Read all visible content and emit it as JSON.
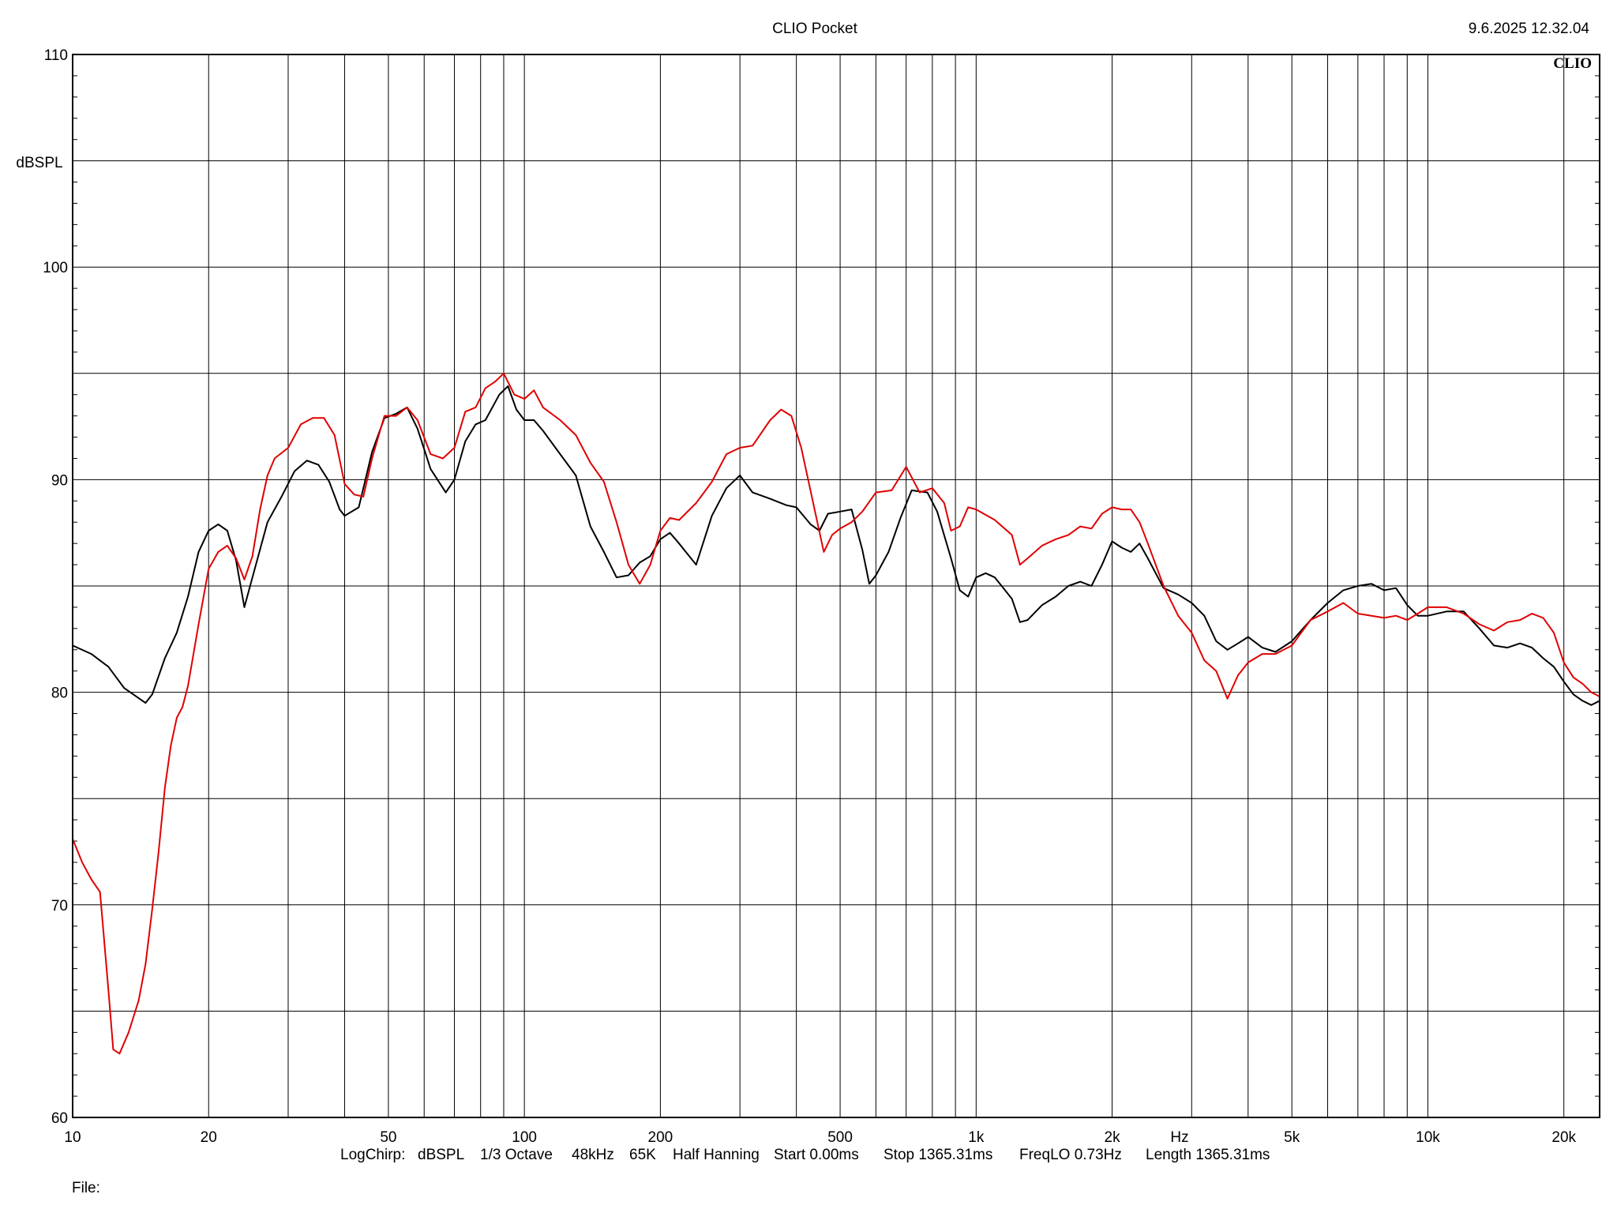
{
  "header": {
    "title": "CLIO Pocket",
    "timestamp": "9.6.2025 12.32.04",
    "brand": "CLIO"
  },
  "chart_data": {
    "type": "line",
    "title": "CLIO Pocket",
    "xlabel": "Hz",
    "ylabel": "dBSPL",
    "xscale": "log",
    "xlim": [
      10,
      24000
    ],
    "ylim": [
      60,
      110
    ],
    "grid": true,
    "x_tick_labels": [
      {
        "value": 10,
        "label": "10"
      },
      {
        "value": 20,
        "label": "20"
      },
      {
        "value": 50,
        "label": "50"
      },
      {
        "value": 100,
        "label": "100"
      },
      {
        "value": 200,
        "label": "200"
      },
      {
        "value": 500,
        "label": "500"
      },
      {
        "value": 1000,
        "label": "1k"
      },
      {
        "value": 2000,
        "label": "2k"
      },
      {
        "value": 5000,
        "label": "5k"
      },
      {
        "value": 10000,
        "label": "10k"
      },
      {
        "value": 20000,
        "label": "20k"
      }
    ],
    "y_tick_labels": [
      {
        "value": 110,
        "label": "110"
      },
      {
        "value": 100,
        "label": "100"
      },
      {
        "value": 90,
        "label": "90"
      },
      {
        "value": 80,
        "label": "80"
      },
      {
        "value": 70,
        "label": "70"
      },
      {
        "value": 60,
        "label": "60"
      }
    ],
    "series": [
      {
        "color": "#000000",
        "points": [
          [
            10,
            82.2
          ],
          [
            11,
            81.8
          ],
          [
            12,
            81.2
          ],
          [
            13,
            80.2
          ],
          [
            14.5,
            79.5
          ],
          [
            15,
            79.9
          ],
          [
            16,
            81.6
          ],
          [
            17,
            82.8
          ],
          [
            18,
            84.5
          ],
          [
            19,
            86.6
          ],
          [
            20,
            87.6
          ],
          [
            21,
            87.9
          ],
          [
            22,
            87.6
          ],
          [
            23,
            86.2
          ],
          [
            24,
            84.0
          ],
          [
            25,
            85.4
          ],
          [
            27,
            88.0
          ],
          [
            29,
            89.2
          ],
          [
            31,
            90.4
          ],
          [
            33,
            90.9
          ],
          [
            35,
            90.7
          ],
          [
            37,
            89.9
          ],
          [
            39,
            88.6
          ],
          [
            40,
            88.3
          ],
          [
            43,
            88.7
          ],
          [
            46,
            91.3
          ],
          [
            49,
            92.9
          ],
          [
            52,
            93.1
          ],
          [
            55,
            93.4
          ],
          [
            58,
            92.4
          ],
          [
            62,
            90.5
          ],
          [
            67,
            89.4
          ],
          [
            70,
            90.0
          ],
          [
            74,
            91.8
          ],
          [
            78,
            92.6
          ],
          [
            82,
            92.8
          ],
          [
            88,
            94.0
          ],
          [
            92,
            94.4
          ],
          [
            96,
            93.3
          ],
          [
            100,
            92.8
          ],
          [
            105,
            92.8
          ],
          [
            110,
            92.3
          ],
          [
            120,
            91.2
          ],
          [
            130,
            90.2
          ],
          [
            140,
            87.8
          ],
          [
            150,
            86.6
          ],
          [
            160,
            85.4
          ],
          [
            170,
            85.5
          ],
          [
            180,
            86.1
          ],
          [
            190,
            86.4
          ],
          [
            200,
            87.2
          ],
          [
            210,
            87.5
          ],
          [
            220,
            87.0
          ],
          [
            240,
            86.0
          ],
          [
            260,
            88.3
          ],
          [
            280,
            89.6
          ],
          [
            300,
            90.2
          ],
          [
            320,
            89.4
          ],
          [
            350,
            89.1
          ],
          [
            380,
            88.8
          ],
          [
            400,
            88.7
          ],
          [
            430,
            87.9
          ],
          [
            450,
            87.6
          ],
          [
            470,
            88.4
          ],
          [
            500,
            88.5
          ],
          [
            530,
            88.6
          ],
          [
            560,
            86.7
          ],
          [
            580,
            85.1
          ],
          [
            600,
            85.5
          ],
          [
            640,
            86.6
          ],
          [
            680,
            88.2
          ],
          [
            720,
            89.5
          ],
          [
            780,
            89.4
          ],
          [
            820,
            88.5
          ],
          [
            880,
            86.3
          ],
          [
            920,
            84.8
          ],
          [
            960,
            84.5
          ],
          [
            1000,
            85.4
          ],
          [
            1050,
            85.6
          ],
          [
            1100,
            85.4
          ],
          [
            1200,
            84.4
          ],
          [
            1250,
            83.3
          ],
          [
            1300,
            83.4
          ],
          [
            1400,
            84.1
          ],
          [
            1500,
            84.5
          ],
          [
            1600,
            85.0
          ],
          [
            1700,
            85.2
          ],
          [
            1800,
            85.0
          ],
          [
            1900,
            86.0
          ],
          [
            2000,
            87.1
          ],
          [
            2100,
            86.8
          ],
          [
            2200,
            86.6
          ],
          [
            2300,
            87.0
          ],
          [
            2400,
            86.3
          ],
          [
            2600,
            84.9
          ],
          [
            2800,
            84.6
          ],
          [
            3000,
            84.2
          ],
          [
            3200,
            83.6
          ],
          [
            3400,
            82.4
          ],
          [
            3600,
            82.0
          ],
          [
            3800,
            82.3
          ],
          [
            4000,
            82.6
          ],
          [
            4300,
            82.1
          ],
          [
            4600,
            81.9
          ],
          [
            5000,
            82.4
          ],
          [
            5500,
            83.4
          ],
          [
            6000,
            84.2
          ],
          [
            6500,
            84.8
          ],
          [
            7000,
            85.0
          ],
          [
            7500,
            85.1
          ],
          [
            8000,
            84.8
          ],
          [
            8500,
            84.9
          ],
          [
            9000,
            84.1
          ],
          [
            9500,
            83.6
          ],
          [
            10000,
            83.6
          ],
          [
            11000,
            83.8
          ],
          [
            12000,
            83.8
          ],
          [
            13000,
            83.0
          ],
          [
            14000,
            82.2
          ],
          [
            15000,
            82.1
          ],
          [
            16000,
            82.3
          ],
          [
            17000,
            82.1
          ],
          [
            18000,
            81.6
          ],
          [
            19000,
            81.2
          ],
          [
            20000,
            80.5
          ],
          [
            21000,
            79.9
          ],
          [
            22000,
            79.6
          ],
          [
            23000,
            79.4
          ],
          [
            24000,
            79.6
          ]
        ]
      },
      {
        "color": "#e00000",
        "points": [
          [
            10,
            73.1
          ],
          [
            10.5,
            72.0
          ],
          [
            11,
            71.2
          ],
          [
            11.5,
            70.6
          ],
          [
            12,
            66.0
          ],
          [
            12.3,
            63.2
          ],
          [
            12.7,
            63.0
          ],
          [
            13.3,
            64.0
          ],
          [
            14,
            65.5
          ],
          [
            14.5,
            67.2
          ],
          [
            15,
            69.8
          ],
          [
            15.5,
            72.5
          ],
          [
            16,
            75.5
          ],
          [
            16.5,
            77.5
          ],
          [
            17,
            78.8
          ],
          [
            17.5,
            79.3
          ],
          [
            18,
            80.3
          ],
          [
            19,
            83.2
          ],
          [
            20,
            85.8
          ],
          [
            21,
            86.6
          ],
          [
            22,
            86.9
          ],
          [
            23,
            86.3
          ],
          [
            24,
            85.3
          ],
          [
            25,
            86.4
          ],
          [
            26,
            88.6
          ],
          [
            27,
            90.2
          ],
          [
            28,
            91.0
          ],
          [
            30,
            91.5
          ],
          [
            32,
            92.6
          ],
          [
            34,
            92.9
          ],
          [
            36,
            92.9
          ],
          [
            38,
            92.1
          ],
          [
            40,
            89.8
          ],
          [
            42,
            89.3
          ],
          [
            44,
            89.2
          ],
          [
            46,
            91.0
          ],
          [
            49,
            93.0
          ],
          [
            52,
            93.0
          ],
          [
            55,
            93.4
          ],
          [
            58,
            92.8
          ],
          [
            62,
            91.2
          ],
          [
            66,
            91.0
          ],
          [
            70,
            91.5
          ],
          [
            74,
            93.2
          ],
          [
            78,
            93.4
          ],
          [
            82,
            94.3
          ],
          [
            86,
            94.6
          ],
          [
            90,
            95.0
          ],
          [
            95,
            94.0
          ],
          [
            100,
            93.8
          ],
          [
            105,
            94.2
          ],
          [
            110,
            93.4
          ],
          [
            120,
            92.8
          ],
          [
            130,
            92.1
          ],
          [
            140,
            90.8
          ],
          [
            150,
            89.9
          ],
          [
            160,
            88.0
          ],
          [
            170,
            86.0
          ],
          [
            180,
            85.1
          ],
          [
            190,
            86.0
          ],
          [
            200,
            87.6
          ],
          [
            210,
            88.2
          ],
          [
            220,
            88.1
          ],
          [
            240,
            88.9
          ],
          [
            260,
            89.9
          ],
          [
            280,
            91.2
          ],
          [
            300,
            91.5
          ],
          [
            320,
            91.6
          ],
          [
            350,
            92.8
          ],
          [
            370,
            93.3
          ],
          [
            390,
            93.0
          ],
          [
            410,
            91.5
          ],
          [
            440,
            88.5
          ],
          [
            460,
            86.6
          ],
          [
            480,
            87.4
          ],
          [
            500,
            87.7
          ],
          [
            530,
            88.0
          ],
          [
            560,
            88.5
          ],
          [
            600,
            89.4
          ],
          [
            650,
            89.5
          ],
          [
            700,
            90.6
          ],
          [
            750,
            89.4
          ],
          [
            800,
            89.6
          ],
          [
            850,
            88.9
          ],
          [
            880,
            87.6
          ],
          [
            920,
            87.8
          ],
          [
            960,
            88.7
          ],
          [
            1000,
            88.6
          ],
          [
            1100,
            88.1
          ],
          [
            1200,
            87.4
          ],
          [
            1250,
            86.0
          ],
          [
            1300,
            86.3
          ],
          [
            1400,
            86.9
          ],
          [
            1500,
            87.2
          ],
          [
            1600,
            87.4
          ],
          [
            1700,
            87.8
          ],
          [
            1800,
            87.7
          ],
          [
            1900,
            88.4
          ],
          [
            2000,
            88.7
          ],
          [
            2100,
            88.6
          ],
          [
            2200,
            88.6
          ],
          [
            2300,
            88.0
          ],
          [
            2400,
            87.0
          ],
          [
            2600,
            85.0
          ],
          [
            2800,
            83.6
          ],
          [
            3000,
            82.8
          ],
          [
            3200,
            81.5
          ],
          [
            3400,
            81.0
          ],
          [
            3600,
            79.7
          ],
          [
            3800,
            80.8
          ],
          [
            4000,
            81.4
          ],
          [
            4300,
            81.8
          ],
          [
            4600,
            81.8
          ],
          [
            5000,
            82.2
          ],
          [
            5500,
            83.4
          ],
          [
            6000,
            83.8
          ],
          [
            6500,
            84.2
          ],
          [
            7000,
            83.7
          ],
          [
            7500,
            83.6
          ],
          [
            8000,
            83.5
          ],
          [
            8500,
            83.6
          ],
          [
            9000,
            83.4
          ],
          [
            9500,
            83.7
          ],
          [
            10000,
            84.0
          ],
          [
            11000,
            84.0
          ],
          [
            12000,
            83.7
          ],
          [
            13000,
            83.2
          ],
          [
            14000,
            82.9
          ],
          [
            15000,
            83.3
          ],
          [
            16000,
            83.4
          ],
          [
            17000,
            83.7
          ],
          [
            18000,
            83.5
          ],
          [
            19000,
            82.8
          ],
          [
            20000,
            81.4
          ],
          [
            21000,
            80.7
          ],
          [
            22000,
            80.4
          ],
          [
            23000,
            80.0
          ],
          [
            24000,
            79.8
          ]
        ]
      }
    ]
  },
  "footer": {
    "items": [
      "LogChirp:",
      "dBSPL",
      "1/3 Octave",
      "48kHz",
      "65K",
      "Half Hanning",
      "Start 0.00ms",
      "Stop 1365.31ms",
      "FreqLO 0.73Hz",
      "Length 1365.31ms"
    ],
    "file_label": "File:"
  },
  "colors": {
    "grid": "#000000",
    "background": "#ffffff",
    "series_1": "#000000",
    "series_2": "#e00000"
  }
}
